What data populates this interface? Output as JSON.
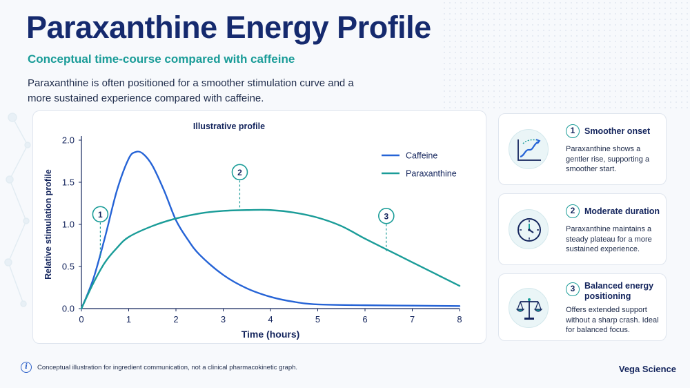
{
  "header": {
    "title": "Paraxanthine Energy Profile",
    "subtitle": "Conceptual time-course compared with caffeine",
    "intro": "Paraxanthine is often positioned for a smoother stimulation curve and a more sustained experience compared with caffeine."
  },
  "chart_data": {
    "type": "line",
    "title": "Illustrative profile",
    "xlabel": "Time (hours)",
    "ylabel": "Relative stimulation profile",
    "xlim": [
      0,
      8
    ],
    "ylim": [
      0,
      2.0
    ],
    "x_ticks": [
      "0",
      "1",
      "2",
      "3",
      "4",
      "5",
      "6",
      "7",
      "8"
    ],
    "y_ticks": [
      "0.0",
      "0.5",
      "1.0",
      "1.5",
      "2.0"
    ],
    "grid": false,
    "legend_position": "top-right",
    "series": [
      {
        "name": "Caffeine",
        "color": "#2563d6",
        "points": [
          [
            0,
            0
          ],
          [
            0.25,
            0.35
          ],
          [
            0.5,
            0.85
          ],
          [
            0.75,
            1.4
          ],
          [
            1.0,
            1.78
          ],
          [
            1.15,
            1.86
          ],
          [
            1.3,
            1.84
          ],
          [
            1.5,
            1.7
          ],
          [
            1.75,
            1.4
          ],
          [
            2.0,
            1.05
          ],
          [
            2.25,
            0.82
          ],
          [
            2.5,
            0.64
          ],
          [
            3.0,
            0.4
          ],
          [
            3.5,
            0.24
          ],
          [
            4.0,
            0.14
          ],
          [
            4.5,
            0.08
          ],
          [
            5.0,
            0.05
          ],
          [
            6.0,
            0.04
          ],
          [
            7.0,
            0.035
          ],
          [
            8.0,
            0.03
          ]
        ]
      },
      {
        "name": "Paraxanthine",
        "color": "#1a9c98",
        "points": [
          [
            0,
            0
          ],
          [
            0.25,
            0.3
          ],
          [
            0.5,
            0.55
          ],
          [
            0.75,
            0.72
          ],
          [
            1.0,
            0.85
          ],
          [
            1.5,
            0.98
          ],
          [
            2.0,
            1.07
          ],
          [
            2.5,
            1.13
          ],
          [
            3.0,
            1.16
          ],
          [
            3.5,
            1.17
          ],
          [
            4.0,
            1.17
          ],
          [
            4.5,
            1.14
          ],
          [
            5.0,
            1.08
          ],
          [
            5.5,
            0.98
          ],
          [
            6.0,
            0.83
          ],
          [
            6.5,
            0.69
          ],
          [
            7.0,
            0.55
          ],
          [
            7.5,
            0.41
          ],
          [
            8.0,
            0.27
          ]
        ]
      }
    ],
    "markers": [
      {
        "label": "1",
        "x": 0.4,
        "y_top": 1.12,
        "y_bottom": 0.6
      },
      {
        "label": "2",
        "x": 3.35,
        "y_top": 1.62,
        "y_bottom": 1.2
      },
      {
        "label": "3",
        "x": 6.45,
        "y_top": 1.1,
        "y_bottom": 0.68
      }
    ]
  },
  "cards": [
    {
      "number": "1",
      "title": "Smoother onset",
      "description": "Paraxanthine shows a gentler rise, supporting a smoother start.",
      "icon": "rising-curve-icon"
    },
    {
      "number": "2",
      "title": "Moderate duration",
      "description": "Paraxanthine maintains a steady plateau for a more sustained experience.",
      "icon": "clock-icon"
    },
    {
      "number": "3",
      "title": "Balanced energy positioning",
      "description": "Offers extended support without a sharp crash. Ideal for balanced focus.",
      "icon": "balance-scale-icon"
    }
  ],
  "footer": {
    "note": "Conceptual illustration for ingredient communication, not a clinical pharmacokinetic graph.",
    "brand": "Vega Science"
  }
}
